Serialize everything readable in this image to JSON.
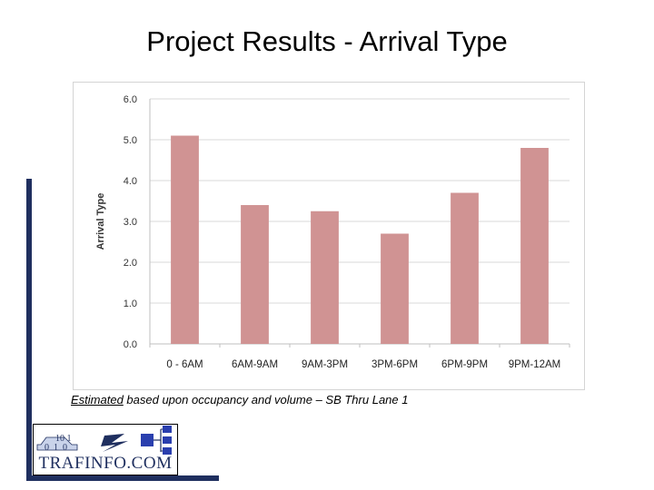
{
  "title": "Project Results - Arrival Type",
  "caption": {
    "underlined": "Estimated",
    "rest": " based upon occupancy and volume – SB Thru Lane 1"
  },
  "logo": {
    "text": "TRAFINFO.COM",
    "bits_top": "10 1",
    "bits_bottom": "0  1  0"
  },
  "colors": {
    "bar": "#d09393",
    "accent": "#1f2f5f",
    "grid": "#d9d9d9"
  },
  "chart_data": {
    "type": "bar",
    "categories": [
      "0 - 6AM",
      "6AM-9AM",
      "9AM-3PM",
      "3PM-6PM",
      "6PM-9PM",
      "9PM-12AM"
    ],
    "values": [
      5.1,
      3.4,
      3.25,
      2.7,
      3.7,
      4.8
    ],
    "title": "",
    "xlabel": "",
    "ylabel": "Arrival Type",
    "ylim": [
      0,
      6
    ],
    "yticks": [
      "0.0",
      "1.0",
      "2.0",
      "3.0",
      "4.0",
      "5.0",
      "6.0"
    ],
    "grid": true,
    "legend": "none"
  }
}
